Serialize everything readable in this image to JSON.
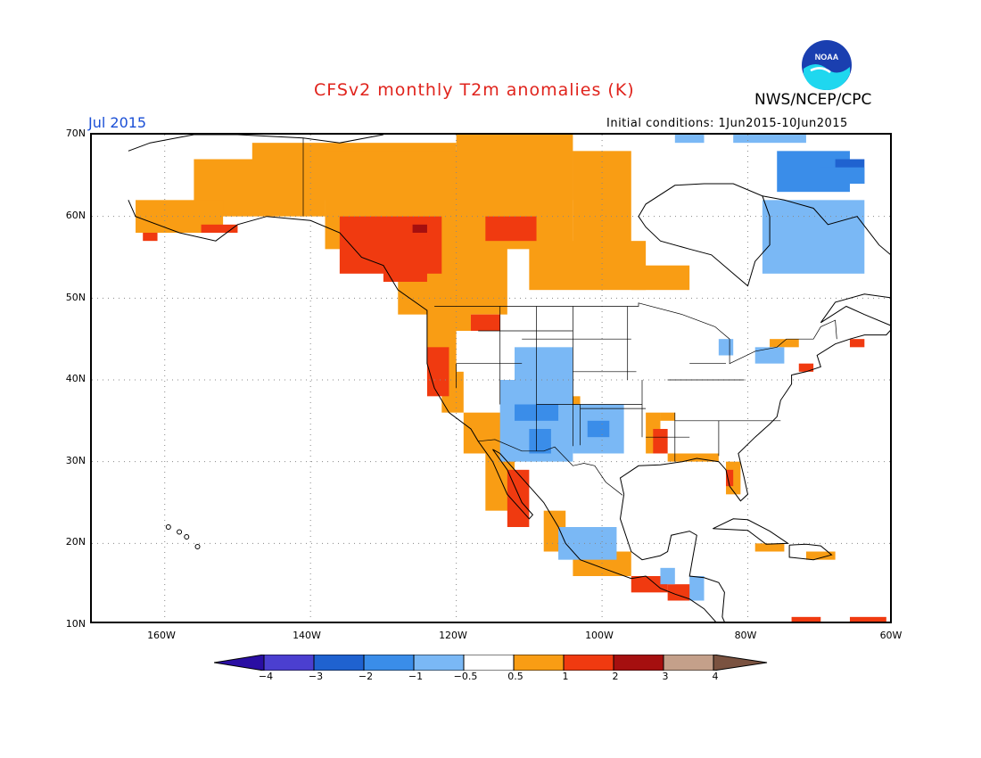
{
  "title": "CFSv2 monthly T2m anomalies (K)",
  "agency": "NWS/NCEP/CPC",
  "logo_text": "NOAA",
  "month": "Jul 2015",
  "initial_conditions": "Initial conditions: 1Jun2015-10Jun2015",
  "axes": {
    "lat_labels": [
      "70N",
      "60N",
      "50N",
      "40N",
      "30N",
      "20N",
      "10N"
    ],
    "lon_labels": [
      "160W",
      "140W",
      "120W",
      "100W",
      "80W",
      "60W"
    ]
  },
  "colorbar": {
    "labels": [
      "−4",
      "−3",
      "−2",
      "−1",
      "−0.5",
      "0.5",
      "1",
      "2",
      "3",
      "4"
    ],
    "colors": [
      "#2a0ea3",
      "#4b3fd0",
      "#1f62d0",
      "#3a8de9",
      "#7ab8f5",
      "#ffffff",
      "#f99d14",
      "#f03a10",
      "#a50f0f",
      "#c4a08a",
      "#7a5240"
    ]
  },
  "legend_colors": {
    "cold_light": "#7ab8f5",
    "cold_medium": "#3a8de9",
    "cold_strong": "#1f62d0",
    "cold_extreme": "#4b3fd0",
    "warm_light": "#f99d14",
    "warm_medium": "#f03a10",
    "warm_strong": "#a50f0f"
  }
}
